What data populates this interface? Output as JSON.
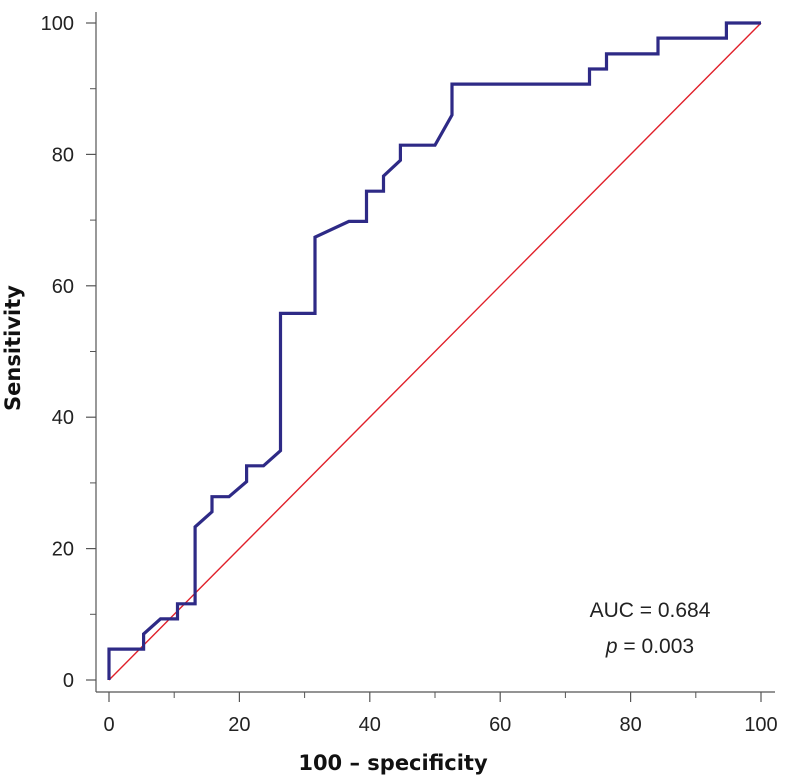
{
  "chart_data": {
    "type": "line",
    "xlabel": "100 – specificity",
    "ylabel": "Sensitivity",
    "xlim": [
      0,
      100
    ],
    "ylim": [
      0,
      100
    ],
    "xticks": [
      "0",
      "20",
      "40",
      "60",
      "80",
      "100"
    ],
    "yticks": [
      "0",
      "20",
      "40",
      "60",
      "80",
      "100"
    ],
    "grid": false,
    "annotations": {
      "auc": "AUC = 0.684",
      "p_symbol": "p",
      "p_rest": " = 0.003"
    },
    "series": [
      {
        "role": "roc-curve",
        "color": "#2e2a86",
        "x": [
          0,
          0,
          5.3,
          5.3,
          7.9,
          10.5,
          10.5,
          13.2,
          13.2,
          15.8,
          15.8,
          18.4,
          21.1,
          21.1,
          23.7,
          26.3,
          26.3,
          31.6,
          31.6,
          36.8,
          39.5,
          39.5,
          42.1,
          42.1,
          44.7,
          44.7,
          50.0,
          52.6,
          52.6,
          73.7,
          73.7,
          76.3,
          76.3,
          84.2,
          84.2,
          94.7,
          94.7,
          100
        ],
        "y": [
          0,
          4.7,
          4.7,
          7.0,
          9.3,
          9.3,
          11.6,
          11.6,
          23.3,
          25.6,
          27.9,
          27.9,
          30.2,
          32.6,
          32.6,
          34.9,
          55.8,
          55.8,
          67.4,
          69.8,
          69.8,
          74.4,
          74.4,
          76.7,
          79.1,
          81.4,
          81.4,
          86.0,
          90.7,
          90.7,
          93.0,
          93.0,
          95.3,
          95.3,
          97.7,
          97.7,
          100,
          100
        ]
      },
      {
        "role": "reference-line",
        "color": "#e0202a",
        "x": [
          0,
          100
        ],
        "y": [
          0,
          100
        ]
      }
    ],
    "colors": {
      "axis": "#555555",
      "curve": "#2e2a86",
      "diagonal": "#e0202a"
    }
  }
}
